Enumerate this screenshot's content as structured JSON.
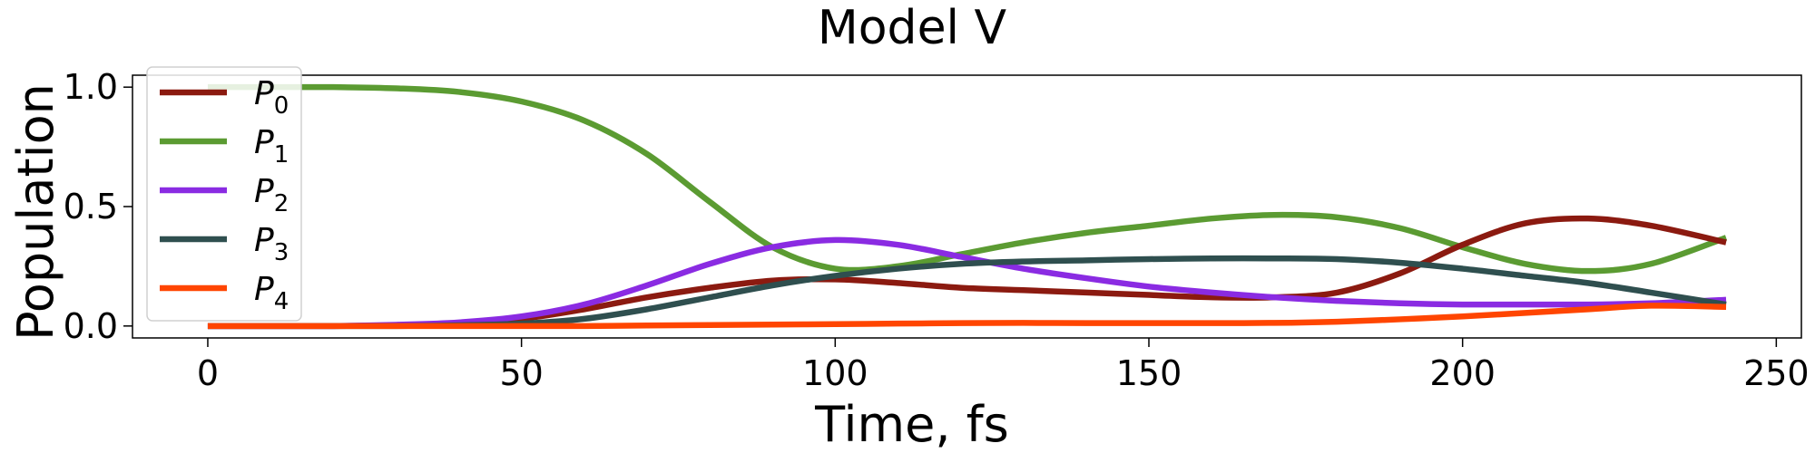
{
  "chart_data": {
    "type": "line",
    "title": "Model V",
    "xlabel": "Time, fs",
    "ylabel": "Population",
    "xlim": [
      -12,
      254
    ],
    "ylim": [
      -0.05,
      1.05
    ],
    "xticks": [
      0,
      50,
      100,
      150,
      200,
      250
    ],
    "xtick_labels": [
      "0",
      "50",
      "100",
      "150",
      "200",
      "250"
    ],
    "yticks": [
      0.0,
      0.5,
      1.0
    ],
    "ytick_labels": [
      "0.0",
      "0.5",
      "1.0"
    ],
    "grid": false,
    "legend_position": "upper-left",
    "x": [
      0,
      10,
      20,
      30,
      40,
      50,
      60,
      70,
      80,
      90,
      100,
      110,
      120,
      130,
      140,
      150,
      160,
      170,
      180,
      190,
      200,
      210,
      220,
      230,
      242
    ],
    "series": [
      {
        "name": "P",
        "subscript": "0",
        "color": "#8b1a10",
        "values": [
          0.0,
          0.0,
          0.0,
          0.003,
          0.01,
          0.03,
          0.07,
          0.12,
          0.16,
          0.19,
          0.195,
          0.18,
          0.16,
          0.15,
          0.14,
          0.13,
          0.12,
          0.12,
          0.14,
          0.22,
          0.34,
          0.43,
          0.45,
          0.42,
          0.35
        ]
      },
      {
        "name": "P",
        "subscript": "1",
        "color": "#5b9b32",
        "values": [
          1.0,
          1.0,
          1.0,
          0.995,
          0.98,
          0.94,
          0.86,
          0.72,
          0.52,
          0.33,
          0.24,
          0.25,
          0.3,
          0.35,
          0.39,
          0.42,
          0.45,
          0.465,
          0.455,
          0.41,
          0.33,
          0.26,
          0.23,
          0.26,
          0.37
        ]
      },
      {
        "name": "P",
        "subscript": "2",
        "color": "#8a2be2",
        "values": [
          0.0,
          0.0,
          0.0,
          0.005,
          0.015,
          0.04,
          0.09,
          0.17,
          0.26,
          0.33,
          0.36,
          0.34,
          0.29,
          0.24,
          0.2,
          0.165,
          0.14,
          0.12,
          0.105,
          0.095,
          0.09,
          0.09,
          0.09,
          0.095,
          0.11
        ]
      },
      {
        "name": "P",
        "subscript": "3",
        "color": "#2f4f4f",
        "values": [
          0.0,
          0.0,
          0.0,
          0.0,
          0.003,
          0.01,
          0.03,
          0.07,
          0.12,
          0.17,
          0.21,
          0.24,
          0.26,
          0.27,
          0.275,
          0.28,
          0.283,
          0.283,
          0.28,
          0.265,
          0.24,
          0.21,
          0.18,
          0.14,
          0.09
        ]
      },
      {
        "name": "P",
        "subscript": "4",
        "color": "#ff4500",
        "values": [
          0.0,
          0.0,
          0.0,
          0.0,
          0.0,
          0.0,
          0.0,
          0.002,
          0.004,
          0.006,
          0.008,
          0.01,
          0.012,
          0.013,
          0.012,
          0.012,
          0.012,
          0.013,
          0.018,
          0.028,
          0.04,
          0.055,
          0.07,
          0.085,
          0.08
        ]
      }
    ]
  }
}
